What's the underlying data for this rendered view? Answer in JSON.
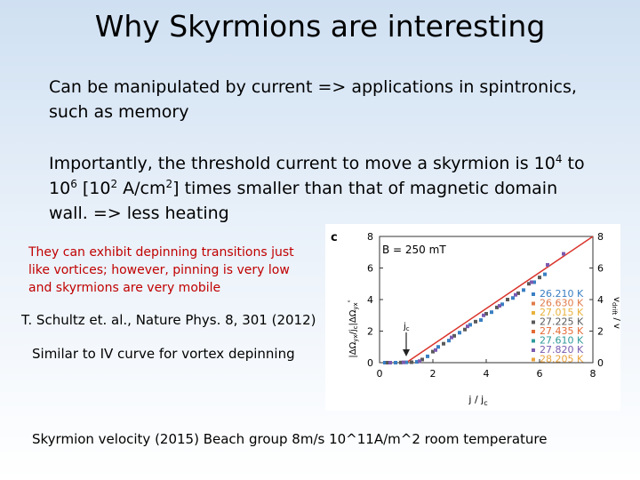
{
  "slide": {
    "title": "Why Skyrmions are interesting",
    "bullet1": "Can be manipulated by current => applications in spintronics, such as memory",
    "bullet2": {
      "text_a": "Importantly, the threshold current to move a skyrmion is 10",
      "exp_a": "4",
      "text_b": " to 10",
      "exp_b": "6",
      "text_c": " [10",
      "exp_c": "2",
      "text_d": " A/cm",
      "exp_d": "2",
      "text_e": "] times smaller than that of magnetic domain wall. => less heating"
    },
    "red_note": "They can exhibit depinning transitions just like vortices; however, pinning is very low and skyrmions are very mobile",
    "citation": "T. Schultz et. al., Nature Phys. 8, 301 (2012)",
    "similar": "Similar to IV curve for vortex depinning",
    "velocity": "Skyrmion velocity (2015) Beach group 8m/s  10^11A/m^2 room temperature"
  },
  "figure": {
    "panel_label": "c",
    "field_label": "B = 250 mT",
    "y_label_left": "|ΔΩ",
    "y_label_left_sub": "yx",
    "y_label_left_rest": "/j",
    "y_label_left_rest_sub": "c",
    "y_label_left_tail": "|ΔΩ",
    "y_label_left_tail_sub": "yx",
    "y_label_left_end": "ᵉ",
    "y_label_right": "v",
    "y_label_right_sub": "drift",
    "y_label_right_tail": " / v",
    "x_label": "j / j",
    "x_label_sub": "c",
    "arrow_label": "j",
    "arrow_label_sub": "c",
    "x_ticks": [
      "0",
      "2",
      "4",
      "6",
      "8"
    ],
    "y_ticks": [
      "0",
      "2",
      "4",
      "6",
      "8"
    ],
    "legend_colors": [
      "#3a7fc2",
      "#e07b4b",
      "#e8b23c",
      "#5a5a5a",
      "#e46a34",
      "#2f9a9a",
      "#7a5bb0",
      "#e8a33c"
    ],
    "fit_line_color": "#d9342b",
    "legend": [
      "26.210 K",
      "26.630 K",
      "27.015 K",
      "27.225 K",
      "27.435 K",
      "27.610 K",
      "27.820 K",
      "28.205 K"
    ]
  },
  "chart_data": {
    "type": "scatter",
    "title": "",
    "xlim": [
      0,
      8
    ],
    "ylim": [
      0,
      8
    ],
    "grid": false,
    "legend_position": "right",
    "series": [
      {
        "name": "26.210 K",
        "x": [
          0.2,
          0.6,
          1.0,
          1.4,
          1.8,
          2.2,
          2.6,
          3.0,
          3.4,
          3.8,
          4.2,
          4.6,
          5.0,
          5.4,
          5.8,
          6.2
        ],
        "y": [
          0.0,
          0.0,
          0.02,
          0.05,
          0.4,
          1.0,
          1.4,
          1.9,
          2.4,
          2.7,
          3.2,
          3.7,
          4.1,
          4.6,
          5.1,
          5.6
        ]
      },
      {
        "name": "27.225 K",
        "x": [
          0.3,
          0.8,
          1.2,
          1.6,
          2.0,
          2.4,
          2.8,
          3.2,
          3.6,
          4.0,
          4.4,
          4.8,
          5.2,
          5.6,
          6.0
        ],
        "y": [
          0.0,
          0.01,
          0.03,
          0.2,
          0.7,
          1.2,
          1.7,
          2.1,
          2.6,
          3.1,
          3.5,
          4.0,
          4.4,
          5.0,
          5.4
        ]
      },
      {
        "name": "27.820 K",
        "x": [
          0.4,
          0.9,
          1.5,
          2.1,
          2.7,
          3.3,
          3.9,
          4.5,
          5.1,
          5.7,
          6.3,
          6.9
        ],
        "y": [
          0.0,
          0.02,
          0.1,
          0.8,
          1.6,
          2.3,
          3.0,
          3.6,
          4.3,
          5.1,
          6.2,
          6.9
        ]
      }
    ],
    "fit_line": {
      "x": [
        1.0,
        8.0
      ],
      "y": [
        0.0,
        8.0
      ]
    }
  }
}
